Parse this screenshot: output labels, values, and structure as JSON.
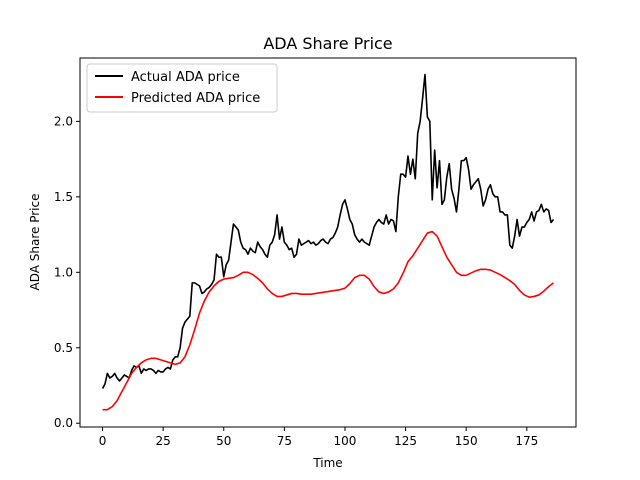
{
  "chart_data": {
    "type": "line",
    "title": "ADA Share Price",
    "xlabel": "Time",
    "ylabel": "ADA Share Price",
    "xlim": [
      -9.3,
      195.3
    ],
    "ylim": [
      -0.025,
      2.42
    ],
    "xticks": [
      0,
      25,
      50,
      75,
      100,
      125,
      150,
      175
    ],
    "yticks": [
      0.0,
      0.5,
      1.0,
      1.5,
      2.0
    ],
    "ytick_labels": [
      "0.0",
      "0.5",
      "1.0",
      "1.5",
      "2.0"
    ],
    "grid": false,
    "legend_position": "top-left",
    "series": [
      {
        "name": "Actual ADA price",
        "color": "#000000",
        "x": [
          0,
          1,
          2,
          3,
          4,
          5,
          6,
          7,
          8,
          9,
          10,
          11,
          12,
          13,
          14,
          15,
          16,
          17,
          18,
          19,
          20,
          21,
          22,
          23,
          24,
          25,
          26,
          27,
          28,
          29,
          30,
          31,
          32,
          33,
          34,
          35,
          36,
          37,
          38,
          39,
          40,
          41,
          42,
          43,
          44,
          45,
          46,
          47,
          48,
          49,
          50,
          51,
          52,
          53,
          54,
          55,
          56,
          57,
          58,
          59,
          60,
          61,
          62,
          63,
          64,
          65,
          66,
          67,
          68,
          69,
          70,
          71,
          72,
          73,
          74,
          75,
          76,
          77,
          78,
          79,
          80,
          81,
          82,
          83,
          84,
          85,
          86,
          87,
          88,
          89,
          90,
          91,
          92,
          93,
          94,
          95,
          96,
          97,
          98,
          99,
          100,
          101,
          102,
          103,
          104,
          105,
          106,
          107,
          108,
          109,
          110,
          111,
          112,
          113,
          114,
          115,
          116,
          117,
          118,
          119,
          120,
          121,
          122,
          123,
          124,
          125,
          126,
          127,
          128,
          129,
          130,
          131,
          132,
          133,
          134,
          135,
          136,
          137,
          138,
          139,
          140,
          141,
          142,
          143,
          144,
          145,
          146,
          147,
          148,
          149,
          150,
          151,
          152,
          153,
          154,
          155,
          156,
          157,
          158,
          159,
          160,
          161,
          162,
          163,
          164,
          165,
          166,
          167,
          168,
          169,
          170,
          171,
          172,
          173,
          174,
          175,
          176,
          177,
          178,
          179,
          180,
          181,
          182,
          183,
          184,
          185,
          186
        ],
        "values": [
          0.23,
          0.26,
          0.33,
          0.3,
          0.31,
          0.33,
          0.3,
          0.28,
          0.3,
          0.32,
          0.31,
          0.3,
          0.35,
          0.38,
          0.37,
          0.38,
          0.33,
          0.36,
          0.35,
          0.36,
          0.36,
          0.35,
          0.33,
          0.35,
          0.34,
          0.34,
          0.36,
          0.37,
          0.36,
          0.42,
          0.44,
          0.44,
          0.5,
          0.63,
          0.67,
          0.69,
          0.71,
          0.93,
          0.93,
          0.92,
          0.91,
          0.86,
          0.87,
          0.89,
          0.9,
          0.92,
          0.95,
          1.12,
          1.1,
          1.1,
          0.97,
          1.05,
          1.08,
          1.2,
          1.32,
          1.3,
          1.28,
          1.2,
          1.16,
          1.15,
          1.12,
          1.16,
          1.14,
          1.13,
          1.2,
          1.17,
          1.15,
          1.12,
          1.1,
          1.18,
          1.2,
          1.25,
          1.38,
          1.22,
          1.3,
          1.2,
          1.18,
          1.15,
          1.16,
          1.1,
          1.12,
          1.22,
          1.18,
          1.19,
          1.2,
          1.21,
          1.19,
          1.2,
          1.18,
          1.19,
          1.21,
          1.22,
          1.2,
          1.19,
          1.22,
          1.23,
          1.26,
          1.3,
          1.38,
          1.45,
          1.48,
          1.42,
          1.35,
          1.32,
          1.25,
          1.22,
          1.2,
          1.22,
          1.2,
          1.19,
          1.18,
          1.24,
          1.3,
          1.33,
          1.35,
          1.33,
          1.32,
          1.38,
          1.32,
          1.35,
          1.34,
          1.27,
          1.5,
          1.65,
          1.65,
          1.63,
          1.77,
          1.65,
          1.75,
          1.62,
          1.92,
          2.0,
          2.15,
          2.31,
          2.03,
          2.0,
          1.48,
          1.81,
          1.56,
          1.74,
          1.45,
          1.48,
          1.63,
          1.72,
          1.55,
          1.49,
          1.4,
          1.55,
          1.74,
          1.74,
          1.76,
          1.68,
          1.55,
          1.58,
          1.6,
          1.62,
          1.55,
          1.44,
          1.48,
          1.55,
          1.58,
          1.52,
          1.5,
          1.5,
          1.4,
          1.4,
          1.38,
          1.38,
          1.18,
          1.16,
          1.24,
          1.35,
          1.24,
          1.3,
          1.3,
          1.33,
          1.35,
          1.4,
          1.34,
          1.4,
          1.41,
          1.45,
          1.4,
          1.42,
          1.41,
          1.33,
          1.35
        ]
      },
      {
        "name": "Predicted ADA price",
        "color": "#ff0000",
        "x": [
          0,
          2,
          4,
          6,
          8,
          10,
          12,
          14,
          16,
          18,
          20,
          22,
          24,
          26,
          28,
          30,
          32,
          34,
          36,
          38,
          40,
          42,
          44,
          46,
          48,
          50,
          52,
          54,
          56,
          58,
          60,
          62,
          64,
          66,
          68,
          70,
          72,
          74,
          76,
          78,
          80,
          82,
          84,
          86,
          88,
          90,
          92,
          94,
          96,
          98,
          100,
          102,
          104,
          106,
          108,
          110,
          112,
          114,
          116,
          118,
          120,
          122,
          124,
          126,
          128,
          130,
          132,
          134,
          136,
          138,
          140,
          142,
          144,
          146,
          148,
          150,
          152,
          154,
          156,
          158,
          160,
          162,
          164,
          166,
          168,
          170,
          172,
          174,
          176,
          178,
          180,
          182,
          184,
          186
        ],
        "values": [
          0.09,
          0.09,
          0.11,
          0.15,
          0.21,
          0.27,
          0.33,
          0.37,
          0.4,
          0.42,
          0.43,
          0.43,
          0.42,
          0.41,
          0.4,
          0.39,
          0.4,
          0.44,
          0.52,
          0.62,
          0.73,
          0.81,
          0.87,
          0.91,
          0.94,
          0.955,
          0.96,
          0.965,
          0.98,
          1.0,
          1.0,
          0.985,
          0.96,
          0.93,
          0.89,
          0.86,
          0.84,
          0.84,
          0.85,
          0.86,
          0.86,
          0.855,
          0.855,
          0.855,
          0.86,
          0.865,
          0.87,
          0.875,
          0.88,
          0.885,
          0.895,
          0.925,
          0.965,
          0.98,
          0.98,
          0.955,
          0.905,
          0.87,
          0.86,
          0.87,
          0.89,
          0.93,
          0.995,
          1.07,
          1.11,
          1.16,
          1.21,
          1.26,
          1.27,
          1.24,
          1.17,
          1.1,
          1.05,
          1.0,
          0.98,
          0.98,
          0.995,
          1.01,
          1.02,
          1.02,
          1.015,
          1.0,
          0.985,
          0.965,
          0.945,
          0.92,
          0.88,
          0.85,
          0.835,
          0.84,
          0.85,
          0.875,
          0.905,
          0.93
        ]
      }
    ]
  }
}
